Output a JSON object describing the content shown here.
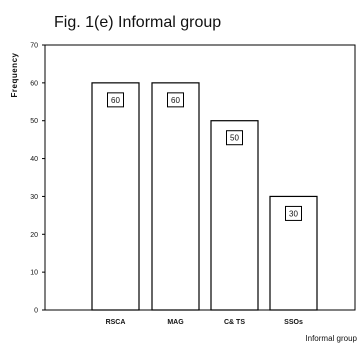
{
  "chart_data": {
    "type": "bar",
    "title": "Fig. 1(e) Informal group",
    "xlabel": "Informal group",
    "ylabel": "Frequency",
    "categories": [
      "RSCA",
      "MAG",
      "C& TS",
      "SSOs"
    ],
    "values": [
      60,
      60,
      50,
      30
    ],
    "data_labels": [
      "60",
      "60",
      "50",
      "30"
    ],
    "ylim": [
      0,
      70
    ],
    "yticks": [
      0,
      10,
      20,
      30,
      40,
      50,
      60,
      70
    ],
    "grid": false,
    "legend": "none",
    "bar_fill": "#ffffff",
    "bar_stroke": "#000000"
  }
}
